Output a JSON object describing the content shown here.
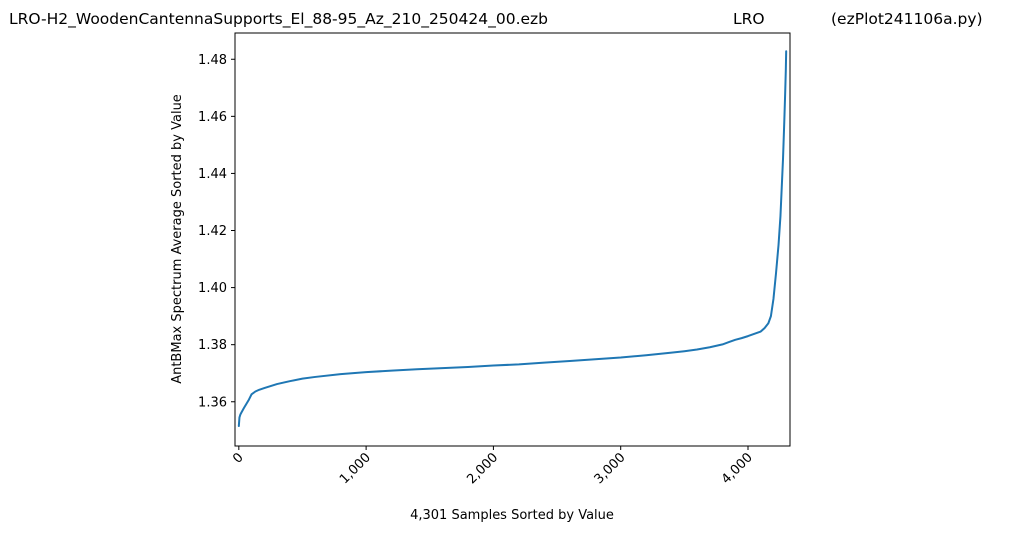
{
  "chart_data": {
    "type": "line",
    "title_parts": [
      "LRO-H2_WoodenCantennaSupports_El_88-95_Az_210_250424_00.ezb",
      "LRO",
      "(ezPlot241106a.py)"
    ],
    "xlabel": "4,301 Samples Sorted by Value",
    "ylabel": "AntBMax Spectrum Average Sorted by Value",
    "xlim": [
      -30,
      4330
    ],
    "ylim": [
      1.3445,
      1.4892
    ],
    "x_ticks": [
      0,
      1000,
      2000,
      3000,
      4000
    ],
    "x_tick_labels": [
      "0",
      "1,000",
      "2,000",
      "3,000",
      "4,000"
    ],
    "y_ticks": [
      1.36,
      1.38,
      1.4,
      1.42,
      1.44,
      1.46,
      1.48
    ],
    "y_tick_labels": [
      "1.36",
      "1.38",
      "1.40",
      "1.42",
      "1.44",
      "1.46",
      "1.48"
    ],
    "grid": false,
    "series": [
      {
        "color": "#1f77b4",
        "x": [
          0,
          5,
          12,
          20,
          40,
          60,
          80,
          100,
          130,
          160,
          200,
          300,
          400,
          500,
          600,
          800,
          1000,
          1200,
          1400,
          1600,
          1800,
          2000,
          2200,
          2400,
          2600,
          2800,
          3000,
          3200,
          3400,
          3500,
          3600,
          3700,
          3800,
          3850,
          3900,
          3950,
          4000,
          4050,
          4100,
          4130,
          4160,
          4180,
          4200,
          4220,
          4240,
          4255,
          4265,
          4275,
          4285,
          4292,
          4297,
          4300
        ],
        "y": [
          1.3515,
          1.3545,
          1.3555,
          1.3562,
          1.3578,
          1.3593,
          1.3608,
          1.3626,
          1.3636,
          1.3642,
          1.3648,
          1.3662,
          1.3672,
          1.3681,
          1.3687,
          1.3697,
          1.3704,
          1.3709,
          1.3714,
          1.3718,
          1.3722,
          1.3727,
          1.3731,
          1.3737,
          1.3743,
          1.3749,
          1.3755,
          1.3763,
          1.3772,
          1.3777,
          1.3783,
          1.3791,
          1.3801,
          1.3809,
          1.3817,
          1.3823,
          1.383,
          1.3838,
          1.3846,
          1.3858,
          1.3875,
          1.39,
          1.396,
          1.405,
          1.415,
          1.425,
          1.435,
          1.445,
          1.458,
          1.468,
          1.476,
          1.4828
        ]
      }
    ]
  }
}
